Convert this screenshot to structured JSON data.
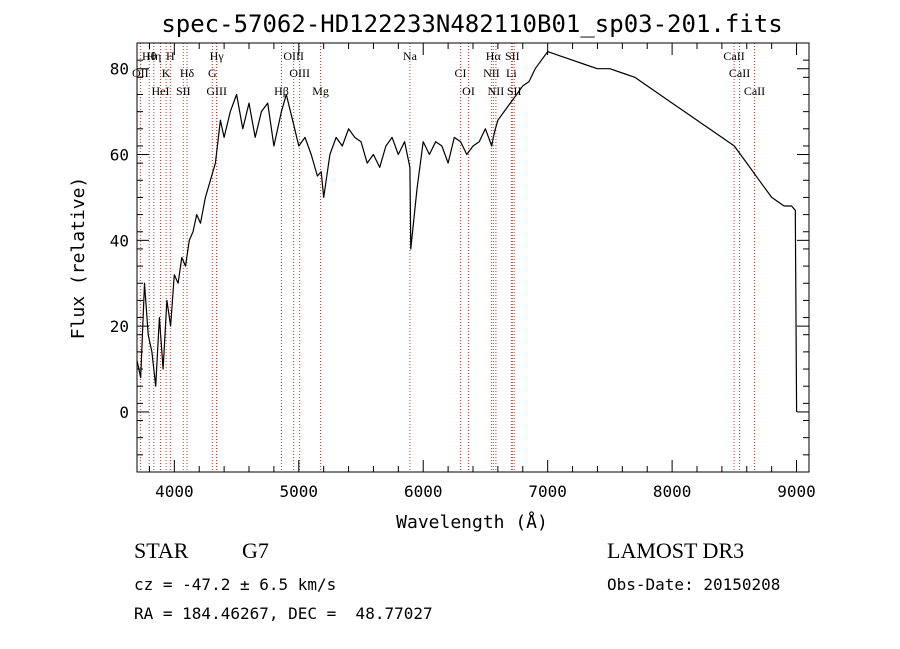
{
  "chart_data": {
    "type": "line",
    "title": "spec-57062-HD122233N482110B01_sp03-201.fits",
    "xlabel": "Wavelength (Å)",
    "ylabel": "Flux (relative)",
    "xlim": [
      3700,
      9100
    ],
    "ylim": [
      -14,
      86
    ],
    "xticks": [
      4000,
      5000,
      6000,
      7000,
      8000,
      9000
    ],
    "yticks": [
      0,
      20,
      40,
      60,
      80
    ],
    "series": [
      {
        "name": "spectrum",
        "x": [
          3700,
          3730,
          3760,
          3790,
          3820,
          3850,
          3880,
          3910,
          3940,
          3970,
          4000,
          4030,
          4060,
          4090,
          4120,
          4150,
          4180,
          4210,
          4250,
          4290,
          4330,
          4370,
          4400,
          4450,
          4500,
          4550,
          4600,
          4650,
          4700,
          4750,
          4800,
          4860,
          4900,
          4950,
          5000,
          5050,
          5100,
          5150,
          5180,
          5200,
          5250,
          5300,
          5350,
          5400,
          5450,
          5500,
          5550,
          5600,
          5650,
          5700,
          5750,
          5800,
          5850,
          5893,
          5900,
          5950,
          6000,
          6050,
          6100,
          6150,
          6200,
          6250,
          6300,
          6350,
          6400,
          6450,
          6500,
          6550,
          6563,
          6580,
          6600,
          6650,
          6700,
          6750,
          6800,
          6850,
          6900,
          6950,
          7000,
          7100,
          7200,
          7300,
          7400,
          7500,
          7600,
          7700,
          7800,
          7900,
          8000,
          8100,
          8200,
          8300,
          8400,
          8500,
          8600,
          8700,
          8800,
          8900,
          8960,
          8990,
          9000
        ],
        "values": [
          12,
          8,
          30,
          18,
          14,
          6,
          22,
          10,
          26,
          20,
          32,
          30,
          36,
          34,
          40,
          42,
          46,
          44,
          50,
          54,
          58,
          68,
          64,
          70,
          74,
          66,
          72,
          64,
          70,
          72,
          62,
          70,
          74,
          68,
          62,
          64,
          60,
          55,
          56,
          50,
          60,
          64,
          62,
          66,
          64,
          63,
          58,
          60,
          57,
          62,
          64,
          60,
          63,
          57,
          38,
          52,
          63,
          60,
          63,
          62,
          58,
          64,
          63,
          60,
          62,
          63,
          66,
          62,
          64,
          66,
          68,
          70,
          72,
          74,
          76,
          77,
          80,
          82,
          84,
          83,
          82,
          81,
          80,
          80,
          79,
          78,
          76,
          74,
          72,
          70,
          68,
          66,
          64,
          62,
          58,
          54,
          50,
          48,
          48,
          47,
          0
        ]
      }
    ],
    "lines": [
      {
        "label": "Hθ",
        "wavelength": 3798
      },
      {
        "label": "OII",
        "wavelength": 3727
      },
      {
        "label": "HeI",
        "wavelength": 3889
      },
      {
        "label": "Hη",
        "wavelength": 3835
      },
      {
        "label": "K",
        "wavelength": 3934
      },
      {
        "label": "SII",
        "wavelength": 4072
      },
      {
        "label": "H",
        "wavelength": 3968
      },
      {
        "label": "Hδ",
        "wavelength": 4102
      },
      {
        "label": "GIII",
        "wavelength": 4340
      },
      {
        "label": "Hγ",
        "wavelength": 4340
      },
      {
        "label": "G",
        "wavelength": 4305
      },
      {
        "label": "Hβ",
        "wavelength": 4861
      },
      {
        "label": "OIII",
        "wavelength": 4959
      },
      {
        "label": "OIII",
        "wavelength": 5007
      },
      {
        "label": "Mg",
        "wavelength": 5175
      },
      {
        "label": "Na",
        "wavelength": 5893
      },
      {
        "label": "CI",
        "wavelength": 6300
      },
      {
        "label": "OI",
        "wavelength": 6364
      },
      {
        "label": "Hα",
        "wavelength": 6563
      },
      {
        "label": "NII",
        "wavelength": 6548
      },
      {
        "label": "NII",
        "wavelength": 6584
      },
      {
        "label": "SII",
        "wavelength": 6716
      },
      {
        "label": "Li",
        "wavelength": 6708
      },
      {
        "label": "SII",
        "wavelength": 6731
      },
      {
        "label": "CaII",
        "wavelength": 8498
      },
      {
        "label": "CaII",
        "wavelength": 8542
      },
      {
        "label": "CaII",
        "wavelength": 8662
      }
    ]
  },
  "info": {
    "object_type": "STAR",
    "subclass": "G7",
    "survey": "LAMOST DR3",
    "cz": "cz = -47.2 ± 6.5 km/s",
    "obs_date": "Obs-Date: 20150208",
    "coords": "RA = 184.46267, DEC =  48.77027"
  }
}
